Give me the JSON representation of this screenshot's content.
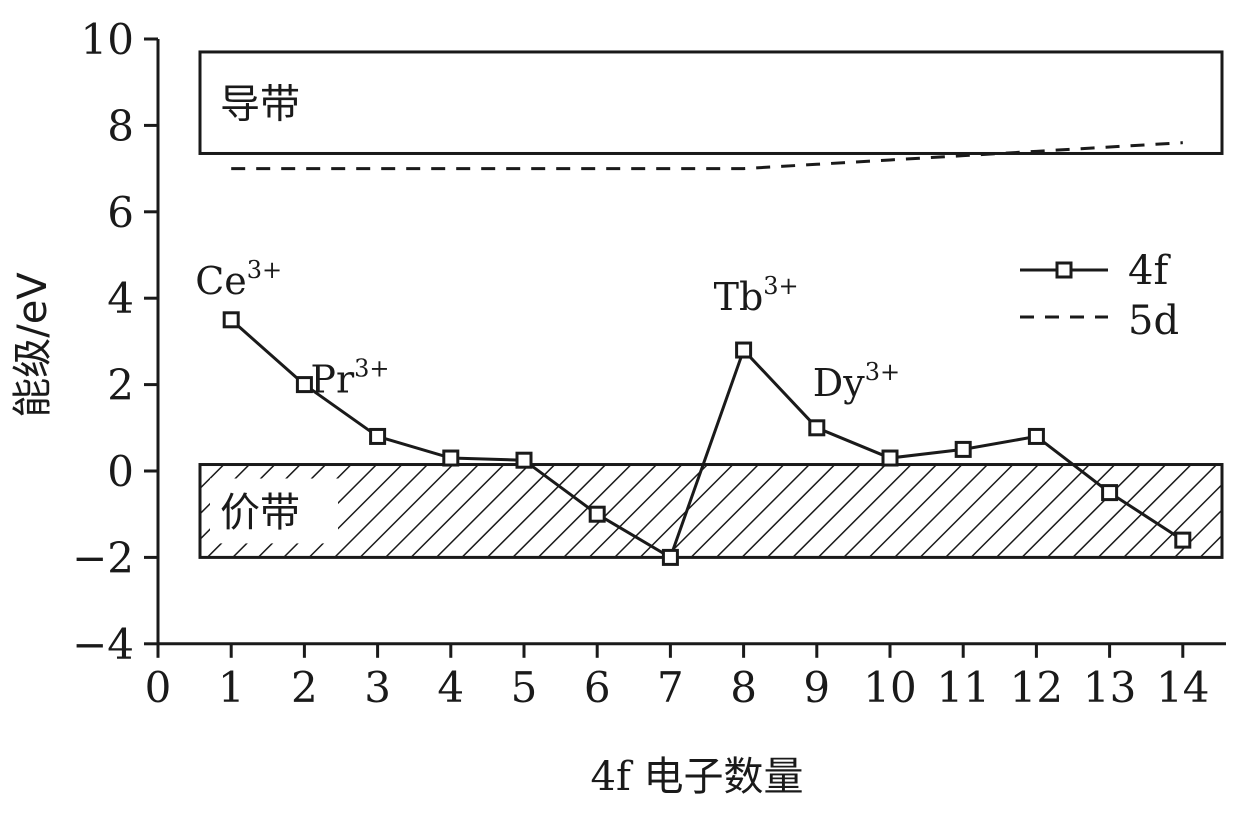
{
  "chart_data": {
    "type": "line",
    "xlabel": "4f 电子数量",
    "ylabel": "能级/eV",
    "xlim": [
      0,
      14
    ],
    "ylim": [
      -4,
      10
    ],
    "x_ticks": [
      "0",
      "1",
      "2",
      "3",
      "4",
      "5",
      "6",
      "7",
      "8",
      "9",
      "10",
      "11",
      "12",
      "13",
      "14"
    ],
    "y_ticks": [
      "−4",
      "−2",
      "0",
      "2",
      "4",
      "6",
      "8",
      "10"
    ],
    "grid": false,
    "legend_position": "top-right",
    "series": [
      {
        "name": "4f",
        "style": "solid-square-markers",
        "x": [
          1,
          2,
          3,
          4,
          5,
          6,
          7,
          8,
          9,
          10,
          11,
          12,
          13,
          14
        ],
        "y": [
          3.5,
          2.0,
          0.8,
          0.3,
          0.25,
          -1.0,
          -2.0,
          2.8,
          1.0,
          0.3,
          0.5,
          0.8,
          -0.5,
          -1.6
        ]
      },
      {
        "name": "5d",
        "style": "dashed",
        "x": [
          1,
          2,
          3,
          4,
          5,
          6,
          7,
          8,
          9,
          10,
          11,
          12,
          13,
          14
        ],
        "y": [
          7.0,
          7.0,
          7.0,
          7.0,
          7.0,
          7.0,
          7.0,
          7.0,
          7.1,
          7.2,
          7.3,
          7.4,
          7.5,
          7.6
        ]
      }
    ],
    "bands": [
      {
        "label": "导带",
        "y_min": 7.35,
        "y_max": 9.7,
        "fill": "none"
      },
      {
        "label": "价带",
        "y_min": -2.0,
        "y_max": 0.15,
        "fill": "hatched"
      }
    ],
    "ion_labels": [
      {
        "base": "Ce",
        "sup": "3+",
        "x": 1,
        "y": 3.5
      },
      {
        "base": "Pr",
        "sup": "3+",
        "x": 2,
        "y": 2.0
      },
      {
        "base": "Tb",
        "sup": "3+",
        "x": 8,
        "y": 2.8
      },
      {
        "base": "Dy",
        "sup": "3+",
        "x": 9,
        "y": 1.0
      }
    ],
    "colors": {
      "line": "#1a1a1a",
      "marker_fill": "#ffffff",
      "background": "#ffffff"
    }
  }
}
